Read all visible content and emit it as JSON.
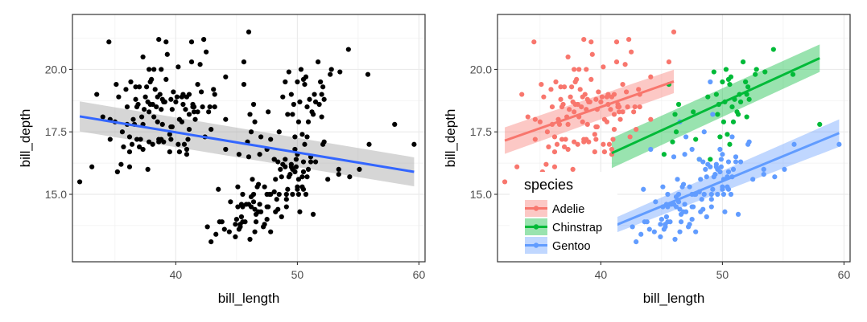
{
  "chart_data": [
    {
      "type": "scatter",
      "panel": "left",
      "xlabel": "bill_length",
      "ylabel": "bill_depth",
      "xlim": [
        31.5,
        60.5
      ],
      "ylim": [
        12.3,
        22.2
      ],
      "xticks": [
        40,
        50,
        60
      ],
      "yticks": [
        15.0,
        17.5,
        20.0
      ],
      "xtick_labels": [
        "40",
        "50",
        "60"
      ],
      "ytick_labels": [
        "15.0",
        "17.5",
        "20.0"
      ],
      "grid": true,
      "point_color": "#000000",
      "fit_color": "#3366FF",
      "band_color": "#999999",
      "points": [
        [
          32.1,
          15.5
        ],
        [
          33.1,
          16.1
        ],
        [
          33.5,
          19.0
        ],
        [
          34.5,
          21.1
        ],
        [
          34.6,
          17.2
        ],
        [
          34.6,
          18.0
        ],
        [
          35.0,
          17.9
        ],
        [
          35.1,
          19.4
        ],
        [
          35.3,
          18.9
        ],
        [
          35.5,
          16.2
        ],
        [
          35.6,
          17.5
        ],
        [
          35.7,
          16.9
        ],
        [
          35.9,
          19.2
        ],
        [
          36.0,
          17.8
        ],
        [
          36.0,
          18.5
        ],
        [
          36.2,
          17.3
        ],
        [
          36.2,
          16.1
        ],
        [
          36.3,
          19.5
        ],
        [
          36.4,
          17.0
        ],
        [
          36.5,
          18.0
        ],
        [
          36.6,
          17.8
        ],
        [
          36.7,
          18.8
        ],
        [
          36.8,
          18.5
        ],
        [
          36.9,
          18.6
        ],
        [
          37.0,
          16.9
        ],
        [
          37.0,
          19.3
        ],
        [
          37.2,
          18.1
        ],
        [
          37.3,
          17.8
        ],
        [
          37.3,
          20.5
        ],
        [
          37.5,
          18.9
        ],
        [
          37.6,
          19.3
        ],
        [
          37.7,
          18.7
        ],
        [
          37.7,
          16.0
        ],
        [
          37.8,
          17.1
        ],
        [
          37.8,
          18.3
        ],
        [
          37.8,
          20.0
        ],
        [
          37.9,
          18.6
        ],
        [
          38.1,
          18.6
        ],
        [
          38.1,
          17.0
        ],
        [
          38.2,
          18.1
        ],
        [
          38.2,
          20.0
        ],
        [
          38.3,
          19.2
        ],
        [
          38.5,
          17.9
        ],
        [
          38.6,
          21.2
        ],
        [
          38.6,
          17.2
        ],
        [
          38.7,
          19.0
        ],
        [
          38.8,
          17.2
        ],
        [
          38.8,
          20.0
        ],
        [
          38.9,
          17.8
        ],
        [
          38.9,
          18.8
        ],
        [
          39.0,
          17.1
        ],
        [
          39.1,
          18.7
        ],
        [
          39.2,
          19.6
        ],
        [
          39.2,
          21.1
        ],
        [
          39.3,
          20.6
        ],
        [
          39.5,
          17.4
        ],
        [
          39.5,
          16.7
        ],
        [
          39.6,
          17.7
        ],
        [
          39.6,
          18.8
        ],
        [
          39.7,
          18.4
        ],
        [
          39.8,
          19.1
        ],
        [
          40.1,
          18.9
        ],
        [
          40.2,
          17.0
        ],
        [
          40.2,
          20.1
        ],
        [
          40.3,
          18.0
        ],
        [
          40.5,
          18.9
        ],
        [
          40.5,
          17.9
        ],
        [
          40.6,
          18.6
        ],
        [
          40.6,
          19.0
        ],
        [
          40.7,
          17.0
        ],
        [
          40.8,
          18.4
        ],
        [
          40.9,
          16.6
        ],
        [
          40.9,
          18.9
        ],
        [
          41.1,
          17.6
        ],
        [
          41.1,
          18.2
        ],
        [
          41.1,
          19.0
        ],
        [
          41.3,
          20.3
        ],
        [
          41.3,
          21.1
        ],
        [
          41.4,
          18.6
        ],
        [
          41.4,
          18.5
        ],
        [
          41.5,
          18.3
        ],
        [
          41.5,
          18.5
        ],
        [
          41.6,
          18.0
        ],
        [
          41.8,
          19.4
        ],
        [
          42.0,
          20.2
        ],
        [
          42.1,
          19.1
        ],
        [
          42.2,
          18.5
        ],
        [
          42.3,
          21.2
        ],
        [
          42.5,
          20.7
        ],
        [
          42.7,
          18.3
        ],
        [
          42.8,
          18.5
        ],
        [
          42.9,
          17.6
        ],
        [
          43.1,
          19.2
        ],
        [
          43.2,
          18.5
        ],
        [
          43.2,
          19.0
        ],
        [
          44.1,
          18.0
        ],
        [
          44.1,
          19.7
        ],
        [
          45.6,
          20.3
        ],
        [
          46.0,
          21.5
        ],
        [
          34.0,
          18.1
        ],
        [
          36.7,
          19.3
        ],
        [
          37.9,
          19.5
        ],
        [
          38.6,
          17.1
        ],
        [
          39.6,
          17.2
        ],
        [
          40.3,
          16.7
        ],
        [
          39.0,
          18.7
        ],
        [
          37.3,
          16.8
        ],
        [
          41.0,
          17.2
        ],
        [
          38.8,
          18.4
        ],
        [
          35.2,
          15.9
        ],
        [
          36.8,
          17.2
        ],
        [
          38.0,
          19.6
        ],
        [
          40.0,
          18.7
        ],
        [
          41.8,
          18.3
        ],
        [
          38.4,
          18.5
        ],
        [
          39.7,
          17.7
        ],
        [
          37.1,
          17.2
        ],
        [
          36.2,
          16.7
        ],
        [
          38.5,
          18.9
        ],
        [
          42.4,
          17.3
        ],
        [
          40.9,
          16.8
        ],
        [
          37.4,
          18.4
        ],
        [
          44.9,
          13.8
        ],
        [
          45.0,
          14.0
        ],
        [
          45.1,
          14.5
        ],
        [
          45.2,
          13.6
        ],
        [
          45.3,
          13.7
        ],
        [
          45.4,
          14.6
        ],
        [
          45.5,
          13.9
        ],
        [
          45.5,
          15.0
        ],
        [
          45.7,
          13.9
        ],
        [
          45.8,
          14.6
        ],
        [
          46.1,
          13.2
        ],
        [
          46.2,
          14.5
        ],
        [
          46.2,
          14.9
        ],
        [
          46.4,
          15.0
        ],
        [
          46.5,
          13.5
        ],
        [
          46.5,
          14.4
        ],
        [
          46.6,
          14.2
        ],
        [
          46.7,
          15.3
        ],
        [
          46.8,
          14.3
        ],
        [
          46.9,
          14.6
        ],
        [
          47.2,
          13.7
        ],
        [
          47.3,
          15.3
        ],
        [
          47.5,
          14.0
        ],
        [
          47.5,
          15.0
        ],
        [
          47.6,
          14.5
        ],
        [
          47.7,
          15.0
        ],
        [
          47.8,
          15.0
        ],
        [
          48.1,
          15.1
        ],
        [
          48.2,
          14.3
        ],
        [
          48.2,
          15.6
        ],
        [
          48.4,
          14.4
        ],
        [
          48.5,
          15.0
        ],
        [
          48.6,
          16.0
        ],
        [
          48.7,
          14.1
        ],
        [
          48.7,
          15.7
        ],
        [
          49.0,
          16.1
        ],
        [
          49.1,
          14.5
        ],
        [
          49.1,
          15.0
        ],
        [
          49.2,
          15.2
        ],
        [
          49.3,
          15.7
        ],
        [
          49.4,
          15.8
        ],
        [
          49.5,
          16.1
        ],
        [
          49.6,
          16.0
        ],
        [
          49.6,
          15.0
        ],
        [
          49.8,
          15.9
        ],
        [
          49.8,
          16.8
        ],
        [
          49.9,
          16.1
        ],
        [
          50.0,
          15.2
        ],
        [
          50.0,
          15.3
        ],
        [
          50.1,
          15.0
        ],
        [
          50.2,
          14.3
        ],
        [
          50.4,
          15.3
        ],
        [
          50.4,
          15.7
        ],
        [
          50.5,
          15.9
        ],
        [
          50.5,
          15.2
        ],
        [
          50.7,
          15.0
        ],
        [
          50.8,
          15.7
        ],
        [
          50.8,
          17.3
        ],
        [
          51.1,
          16.3
        ],
        [
          51.3,
          14.2
        ],
        [
          51.5,
          16.3
        ],
        [
          52.1,
          17.0
        ],
        [
          52.2,
          17.1
        ],
        [
          53.4,
          15.8
        ],
        [
          54.3,
          15.7
        ],
        [
          55.1,
          16.0
        ],
        [
          55.9,
          17.0
        ],
        [
          59.6,
          17.0
        ],
        [
          42.9,
          13.1
        ],
        [
          43.3,
          13.4
        ],
        [
          43.5,
          15.2
        ],
        [
          43.8,
          13.9
        ],
        [
          44.0,
          13.6
        ],
        [
          44.4,
          13.5
        ],
        [
          44.5,
          14.7
        ],
        [
          44.9,
          13.3
        ],
        [
          45.1,
          15.3
        ],
        [
          45.3,
          13.8
        ],
        [
          45.5,
          14.5
        ],
        [
          46.0,
          14.6
        ],
        [
          46.3,
          15.6
        ],
        [
          46.6,
          13.9
        ],
        [
          47.0,
          14.3
        ],
        [
          47.3,
          13.8
        ],
        [
          47.5,
          14.5
        ],
        [
          48.1,
          16.4
        ],
        [
          48.4,
          16.3
        ],
        [
          48.8,
          16.2
        ],
        [
          49.1,
          14.8
        ],
        [
          49.5,
          16.2
        ],
        [
          49.9,
          16.4
        ],
        [
          50.0,
          16.6
        ],
        [
          50.5,
          16.3
        ],
        [
          50.9,
          16.0
        ],
        [
          51.1,
          16.5
        ],
        [
          52.5,
          15.6
        ],
        [
          53.4,
          16.0
        ],
        [
          47.8,
          13.5
        ],
        [
          46.8,
          15.4
        ],
        [
          48.3,
          14.8
        ],
        [
          50.1,
          15.6
        ],
        [
          45.4,
          14.1
        ],
        [
          43.6,
          13.9
        ],
        [
          46.4,
          14.7
        ],
        [
          42.6,
          13.7
        ],
        [
          44.1,
          16.8
        ],
        [
          46.0,
          16.5
        ],
        [
          46.5,
          17.9
        ],
        [
          46.9,
          16.6
        ],
        [
          47.0,
          17.3
        ],
        [
          47.5,
          16.8
        ],
        [
          48.5,
          17.5
        ],
        [
          49.0,
          19.5
        ],
        [
          49.2,
          18.2
        ],
        [
          49.5,
          19.0
        ],
        [
          49.6,
          18.2
        ],
        [
          49.7,
          18.6
        ],
        [
          49.8,
          17.3
        ],
        [
          50.0,
          19.5
        ],
        [
          50.2,
          18.7
        ],
        [
          50.3,
          20.0
        ],
        [
          50.5,
          19.6
        ],
        [
          50.6,
          19.4
        ],
        [
          50.7,
          19.7
        ],
        [
          50.8,
          18.5
        ],
        [
          50.9,
          17.9
        ],
        [
          51.0,
          18.8
        ],
        [
          51.3,
          18.2
        ],
        [
          51.4,
          19.0
        ],
        [
          51.5,
          18.7
        ],
        [
          51.7,
          20.3
        ],
        [
          51.9,
          19.5
        ],
        [
          52.0,
          18.1
        ],
        [
          52.0,
          19.0
        ],
        [
          52.2,
          18.8
        ],
        [
          52.7,
          19.8
        ],
        [
          52.8,
          20.0
        ],
        [
          53.5,
          19.9
        ],
        [
          54.2,
          20.8
        ],
        [
          55.8,
          19.8
        ],
        [
          58.0,
          17.8
        ],
        [
          45.2,
          16.6
        ],
        [
          45.6,
          19.4
        ],
        [
          46.1,
          18.2
        ],
        [
          46.2,
          17.5
        ],
        [
          46.4,
          18.6
        ],
        [
          47.6,
          18.3
        ],
        [
          48.1,
          16.4
        ],
        [
          49.3,
          19.9
        ],
        [
          50.1,
          17.9
        ],
        [
          50.4,
          17.4
        ],
        [
          51.2,
          18.3
        ],
        [
          52.1,
          19.3
        ],
        [
          49.0,
          16.4
        ],
        [
          47.8,
          17.2
        ],
        [
          45.9,
          17.1
        ],
        [
          48.8,
          18.9
        ],
        [
          50.6,
          17.0
        ],
        [
          51.8,
          18.6
        ]
      ],
      "fit": {
        "x": [
          32.1,
          59.6
        ],
        "y": [
          18.12,
          15.9
        ],
        "band_lo": [
          17.52,
          15.32
        ],
        "band_hi": [
          18.72,
          16.48
        ]
      }
    },
    {
      "type": "scatter",
      "panel": "right",
      "xlabel": "bill_length",
      "ylabel": "bill_depth",
      "xlim": [
        31.5,
        60.5
      ],
      "ylim": [
        12.3,
        22.2
      ],
      "xticks": [
        40,
        50,
        60
      ],
      "yticks": [
        15.0,
        17.5,
        20.0
      ],
      "xtick_labels": [
        "40",
        "50",
        "60"
      ],
      "ytick_labels": [
        "15.0",
        "17.5",
        "20.0"
      ],
      "grid": true,
      "legend": {
        "title": "species",
        "position": "inside-bottom-left"
      },
      "series": [
        {
          "name": "Adelie",
          "color": "#F8766D",
          "x_from": 0,
          "x_to": 122,
          "fit": {
            "x": [
              32.1,
              46.0
            ],
            "y": [
              17.15,
              19.52
            ],
            "band_lo": [
              16.62,
              19.05
            ],
            "band_hi": [
              17.68,
              19.99
            ]
          }
        },
        {
          "name": "Chinstrap",
          "color": "#00BA38",
          "x_from": 236,
          "x_to": 280,
          "fit": {
            "x": [
              40.9,
              58.0
            ],
            "y": [
              16.65,
              20.45
            ],
            "band_lo": [
              16.05,
              19.9
            ],
            "band_hi": [
              17.25,
              21.0
            ]
          }
        },
        {
          "name": "Gentoo",
          "color": "#619CFF",
          "x_from": 122,
          "x_to": 236,
          "fit": {
            "x": [
              40.9,
              59.6
            ],
            "y": [
              13.7,
              17.45
            ],
            "band_lo": [
              13.4,
              16.9
            ],
            "band_hi": [
              14.0,
              18.0
            ]
          }
        }
      ]
    }
  ]
}
